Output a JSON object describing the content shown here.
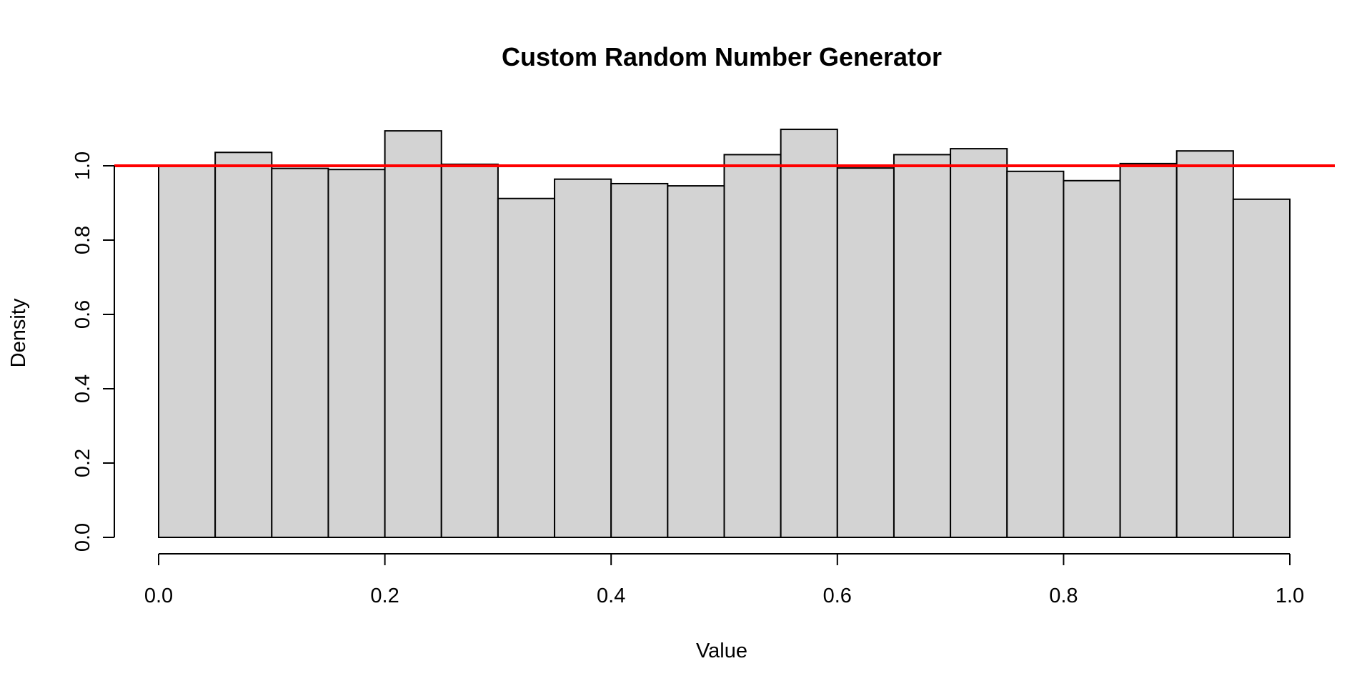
{
  "chart_data": {
    "type": "bar",
    "subtype": "histogram",
    "title": "Custom Random Number Generator",
    "xlabel": "Value",
    "ylabel": "Density",
    "xlim": [
      0.0,
      1.0
    ],
    "ylim": [
      0.0,
      1.1
    ],
    "bin_width": 0.05,
    "bin_edges": [
      0.0,
      0.05,
      0.1,
      0.15,
      0.2,
      0.25,
      0.3,
      0.35,
      0.4,
      0.45,
      0.5,
      0.55,
      0.6,
      0.65,
      0.7,
      0.75,
      0.8,
      0.85,
      0.9,
      0.95,
      1.0
    ],
    "values": [
      1.0,
      1.036,
      0.993,
      0.99,
      1.094,
      1.004,
      0.912,
      0.964,
      0.952,
      0.946,
      1.03,
      1.098,
      0.994,
      1.03,
      1.046,
      0.985,
      0.96,
      1.006,
      1.04,
      0.91
    ],
    "x_ticks": [
      "0.0",
      "0.2",
      "0.4",
      "0.6",
      "0.8",
      "1.0"
    ],
    "x_tick_values": [
      0.0,
      0.2,
      0.4,
      0.6,
      0.8,
      1.0
    ],
    "y_ticks": [
      "0.0",
      "0.2",
      "0.4",
      "0.6",
      "0.8",
      "1.0"
    ],
    "y_tick_values": [
      0.0,
      0.2,
      0.4,
      0.6,
      0.8,
      1.0
    ],
    "reference_line": {
      "y": 1.0,
      "color": "#ff0000"
    },
    "bar_fill": "#d3d3d3",
    "bar_stroke": "#000000",
    "grid": false,
    "legend": "none"
  }
}
